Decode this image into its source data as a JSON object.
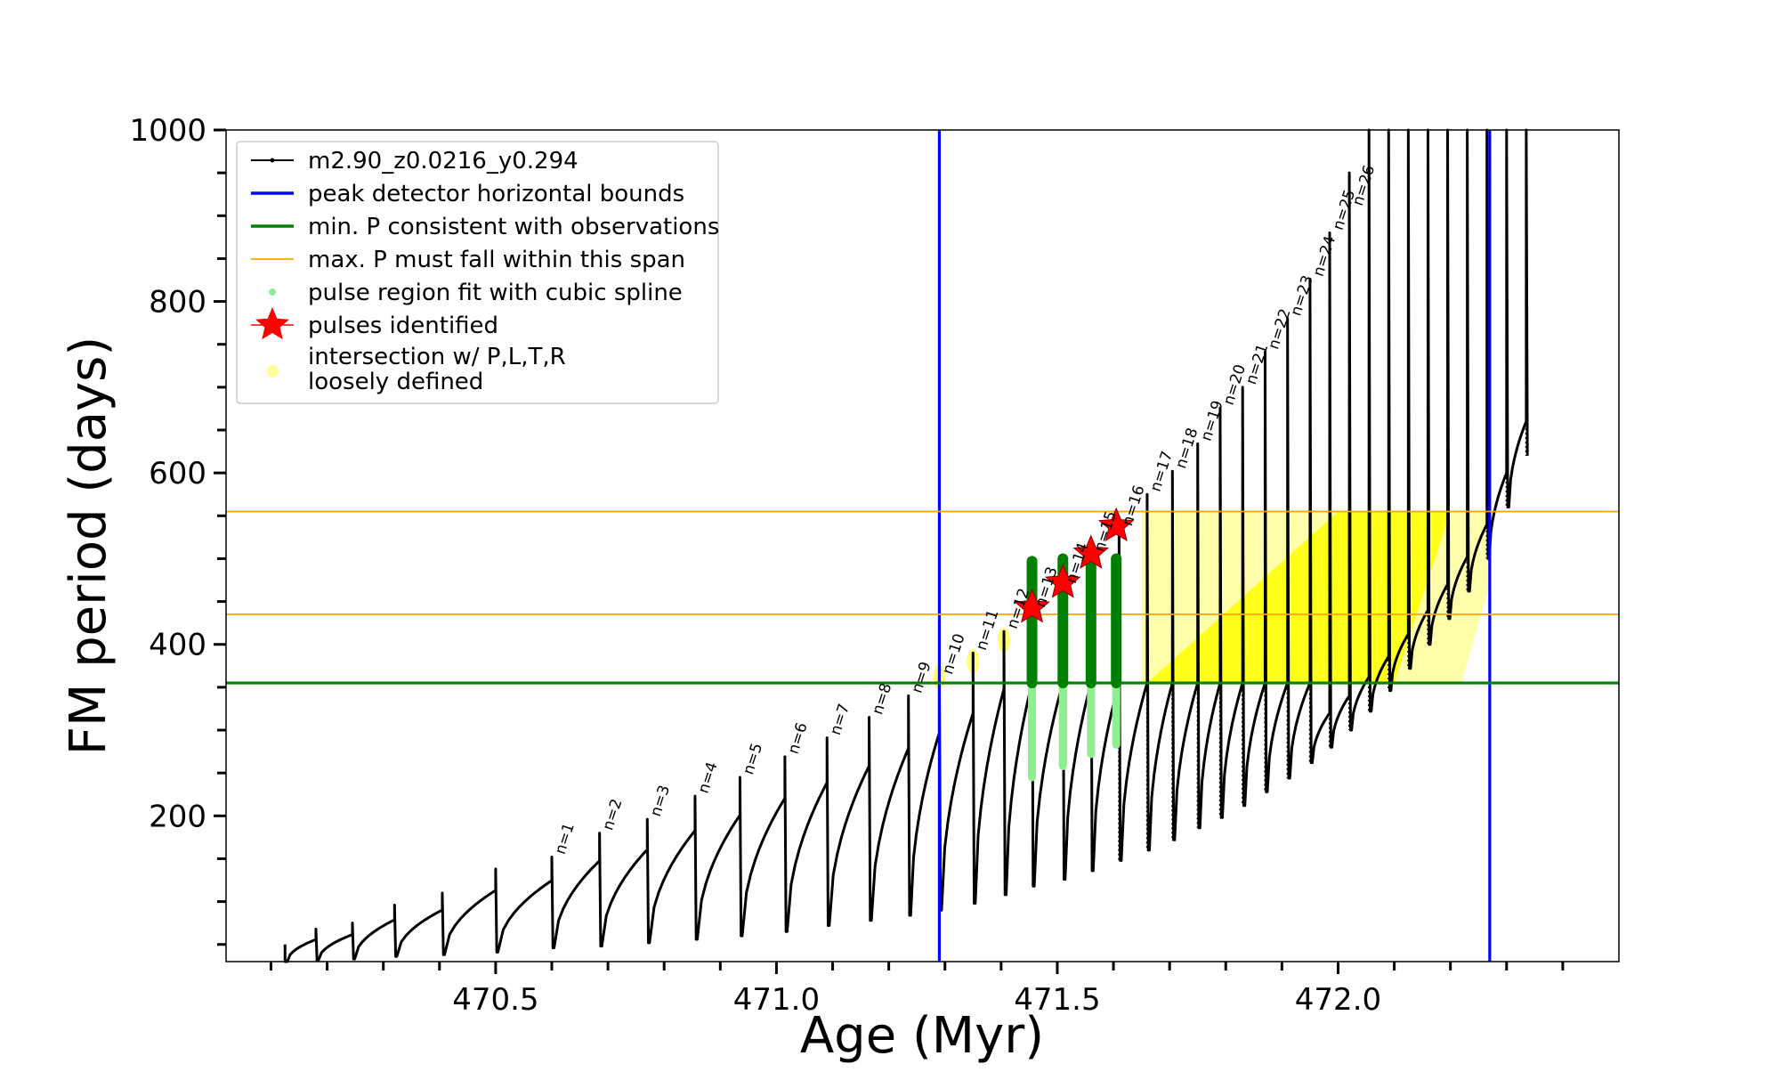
{
  "chart_data": {
    "type": "line",
    "xlabel": "Age (Myr)",
    "ylabel": "FM period (days)",
    "xlim": [
      470.02,
      472.5
    ],
    "ylim": [
      30,
      1000
    ],
    "xticks_major": [
      "470.5",
      "471.0",
      "471.5",
      "472.0"
    ],
    "xtick_values": [
      470.5,
      471.0,
      471.5,
      472.0
    ],
    "yticks_major": [
      "200",
      "400",
      "600",
      "800",
      "1000"
    ],
    "ytick_values": [
      200,
      400,
      600,
      800,
      1000
    ],
    "legend_position": "upper-left",
    "legend": [
      {
        "label": "m2.90_z0.0216_y0.294",
        "kind": "line-marker",
        "color": "#000000"
      },
      {
        "label": "peak detector horizontal bounds",
        "kind": "line",
        "color": "#0000ff"
      },
      {
        "label": "min. P consistent with observations",
        "kind": "line",
        "color": "#008000"
      },
      {
        "label": "max. P must fall within this span",
        "kind": "thin-line",
        "color": "#ffa500"
      },
      {
        "label": "pulse region fit with cubic spline",
        "kind": "dot",
        "color": "#90ee90"
      },
      {
        "label": "pulses identified",
        "kind": "star",
        "color": "#ff0000"
      },
      {
        "label": "intersection w/ P,L,T,R",
        "label2": "loosely defined",
        "kind": "dot",
        "color": "#ffff99"
      }
    ],
    "vertical_lines": [
      471.29,
      472.27
    ],
    "min_period_line": 355,
    "max_period_span": [
      435,
      555
    ],
    "pulse_labels": [
      "n=1",
      "n=2",
      "n=3",
      "n=4",
      "n=5",
      "n=6",
      "n=7",
      "n=8",
      "n=9",
      "n=10",
      "n=11",
      "n=12",
      "n=13",
      "n=14",
      "n=15",
      "n=16",
      "n=17",
      "n=18",
      "n=19",
      "n=20",
      "n=21",
      "n=22",
      "n=23",
      "n=24",
      "n=25",
      "n=26"
    ],
    "pulses": [
      {
        "age": 470.6,
        "peak": 152,
        "min": 46
      },
      {
        "age": 470.685,
        "peak": 180,
        "min": 48
      },
      {
        "age": 470.77,
        "peak": 196,
        "min": 52
      },
      {
        "age": 470.855,
        "peak": 223,
        "min": 56
      },
      {
        "age": 470.935,
        "peak": 245,
        "min": 60
      },
      {
        "age": 471.015,
        "peak": 269,
        "min": 65
      },
      {
        "age": 471.09,
        "peak": 291,
        "min": 72
      },
      {
        "age": 471.165,
        "peak": 315,
        "min": 78
      },
      {
        "age": 471.235,
        "peak": 340,
        "min": 84
      },
      {
        "age": 471.29,
        "peak": 362,
        "min": 90
      },
      {
        "age": 471.35,
        "peak": 390,
        "min": 98
      },
      {
        "age": 471.405,
        "peak": 415,
        "min": 108
      },
      {
        "age": 471.455,
        "peak": 440,
        "min": 118
      },
      {
        "age": 471.51,
        "peak": 468,
        "min": 126
      },
      {
        "age": 471.56,
        "peak": 505,
        "min": 136
      },
      {
        "age": 471.61,
        "peak": 535,
        "min": 148
      },
      {
        "age": 471.66,
        "peak": 575,
        "min": 160
      },
      {
        "age": 471.705,
        "peak": 602,
        "min": 172
      },
      {
        "age": 471.75,
        "peak": 634,
        "min": 186
      },
      {
        "age": 471.79,
        "peak": 676,
        "min": 198
      },
      {
        "age": 471.83,
        "peak": 700,
        "min": 212
      },
      {
        "age": 471.87,
        "peak": 741,
        "min": 228
      },
      {
        "age": 471.91,
        "peak": 780,
        "min": 244
      },
      {
        "age": 471.95,
        "peak": 826,
        "min": 262
      },
      {
        "age": 471.985,
        "peak": 880,
        "min": 280
      },
      {
        "age": 472.02,
        "peak": 950,
        "min": 300
      },
      {
        "age": 472.055,
        "peak": 1000,
        "min": 322
      },
      {
        "age": 472.09,
        "peak": 1000,
        "min": 346
      },
      {
        "age": 472.125,
        "peak": 1000,
        "min": 372
      },
      {
        "age": 472.16,
        "peak": 1000,
        "min": 400
      },
      {
        "age": 472.195,
        "peak": 1000,
        "min": 430
      },
      {
        "age": 472.23,
        "peak": 1000,
        "min": 462
      },
      {
        "age": 472.265,
        "peak": 1000,
        "min": 500
      },
      {
        "age": 472.3,
        "peak": 1000,
        "min": 560
      },
      {
        "age": 472.335,
        "peak": 1000,
        "min": 620
      }
    ],
    "early_pulses": [
      {
        "age": 470.125,
        "peak": 50,
        "min": 30
      },
      {
        "age": 470.18,
        "peak": 68,
        "min": 31
      },
      {
        "age": 470.245,
        "peak": 75,
        "min": 33
      },
      {
        "age": 470.32,
        "peak": 96,
        "min": 36
      },
      {
        "age": 470.405,
        "peak": 110,
        "min": 38
      },
      {
        "age": 470.5,
        "peak": 138,
        "min": 41
      }
    ],
    "identified_pulses": [
      {
        "age": 471.455,
        "period": 443
      },
      {
        "age": 471.51,
        "period": 472
      },
      {
        "age": 471.56,
        "period": 506
      },
      {
        "age": 471.605,
        "period": 538
      }
    ],
    "spline_regions": [
      {
        "age": 471.455,
        "low": 245,
        "high": 497
      },
      {
        "age": 471.51,
        "low": 258,
        "high": 500
      },
      {
        "age": 471.56,
        "low": 272,
        "high": 500
      },
      {
        "age": 471.605,
        "low": 283,
        "high": 500
      }
    ]
  }
}
